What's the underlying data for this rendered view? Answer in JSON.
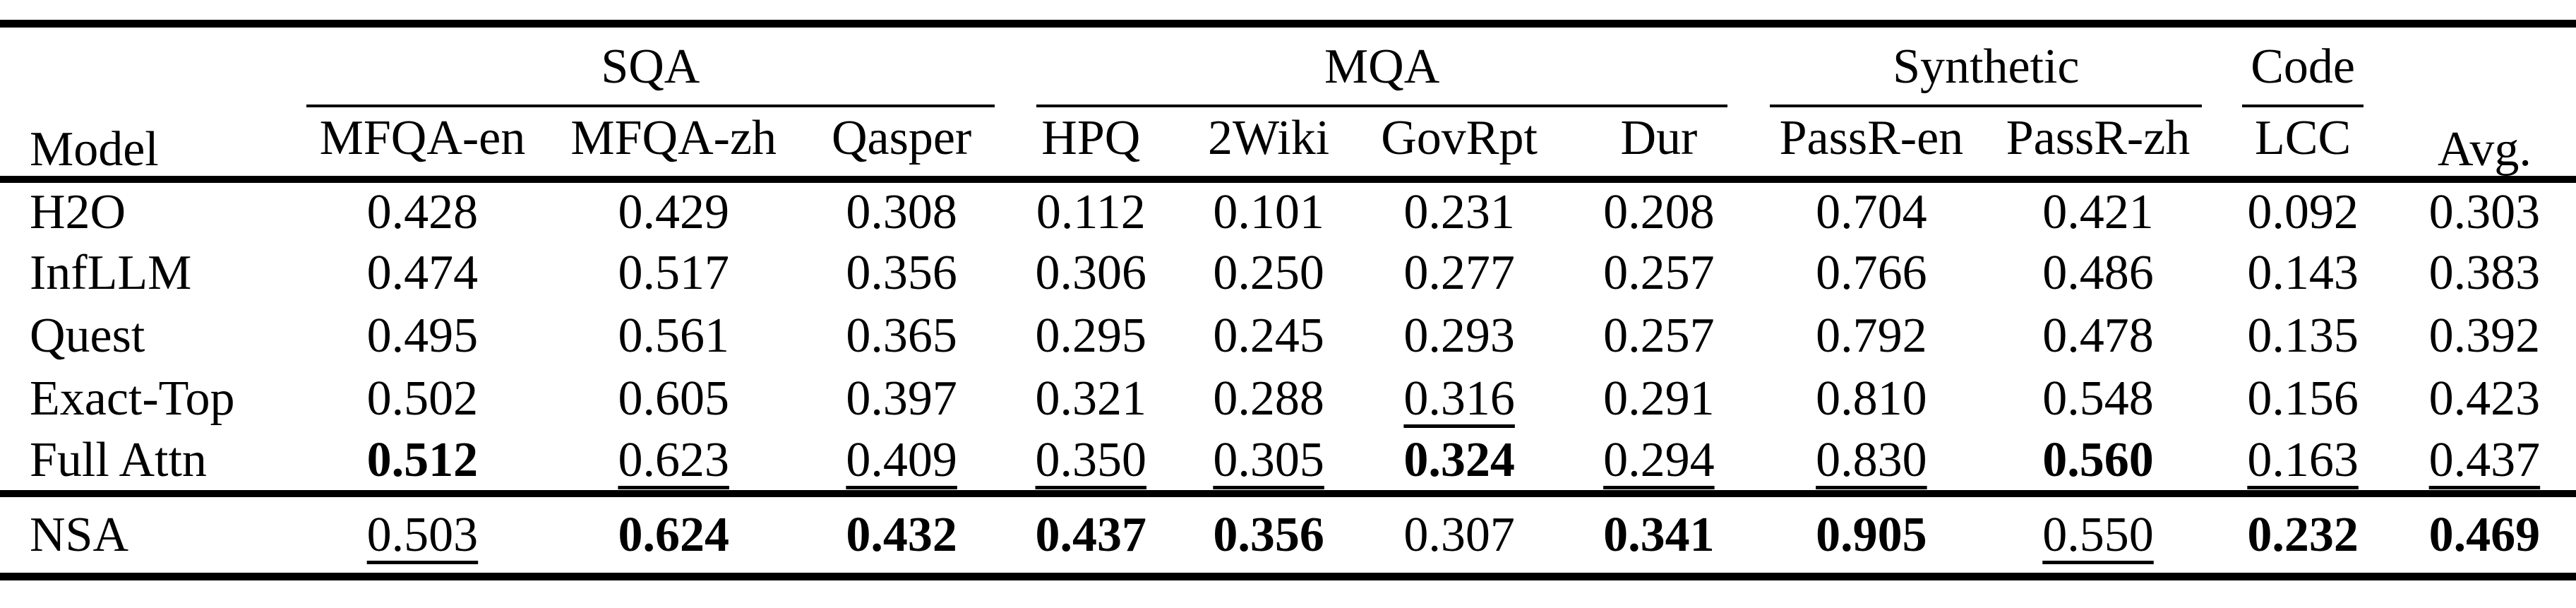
{
  "table": {
    "header": {
      "model_label": "Model",
      "avg_label": "Avg.",
      "groups": [
        {
          "label": "SQA",
          "cols": [
            "MFQA-en",
            "MFQA-zh",
            "Qasper"
          ]
        },
        {
          "label": "MQA",
          "cols": [
            "HPQ",
            "2Wiki",
            "GovRpt",
            "Dur"
          ]
        },
        {
          "label": "Synthetic",
          "cols": [
            "PassR-en",
            "PassR-zh"
          ]
        },
        {
          "label": "Code",
          "cols": [
            "LCC"
          ]
        }
      ]
    },
    "rows": [
      {
        "model": "H2O",
        "values": [
          "0.428",
          "0.429",
          "0.308",
          "0.112",
          "0.101",
          "0.231",
          "0.208",
          "0.704",
          "0.421",
          "0.092",
          "0.303"
        ],
        "emphasis": [
          "",
          "",
          "",
          "",
          "",
          "",
          "",
          "",
          "",
          "",
          ""
        ],
        "separator_before": false
      },
      {
        "model": "InfLLM",
        "values": [
          "0.474",
          "0.517",
          "0.356",
          "0.306",
          "0.250",
          "0.277",
          "0.257",
          "0.766",
          "0.486",
          "0.143",
          "0.383"
        ],
        "emphasis": [
          "",
          "",
          "",
          "",
          "",
          "",
          "",
          "",
          "",
          "",
          ""
        ],
        "separator_before": false
      },
      {
        "model": "Quest",
        "values": [
          "0.495",
          "0.561",
          "0.365",
          "0.295",
          "0.245",
          "0.293",
          "0.257",
          "0.792",
          "0.478",
          "0.135",
          "0.392"
        ],
        "emphasis": [
          "",
          "",
          "",
          "",
          "",
          "",
          "",
          "",
          "",
          "",
          ""
        ],
        "separator_before": false
      },
      {
        "model": "Exact-Top",
        "values": [
          "0.502",
          "0.605",
          "0.397",
          "0.321",
          "0.288",
          "0.316",
          "0.291",
          "0.810",
          "0.548",
          "0.156",
          "0.423"
        ],
        "emphasis": [
          "",
          "",
          "",
          "",
          "",
          "underline",
          "",
          "",
          "",
          "",
          ""
        ],
        "separator_before": false
      },
      {
        "model": "Full Attn",
        "values": [
          "0.512",
          "0.623",
          "0.409",
          "0.350",
          "0.305",
          "0.324",
          "0.294",
          "0.830",
          "0.560",
          "0.163",
          "0.437"
        ],
        "emphasis": [
          "bold",
          "underline",
          "underline",
          "underline",
          "underline",
          "bold",
          "underline",
          "underline",
          "bold",
          "underline",
          "underline"
        ],
        "separator_before": false
      },
      {
        "model": "NSA",
        "values": [
          "0.503",
          "0.624",
          "0.432",
          "0.437",
          "0.356",
          "0.307",
          "0.341",
          "0.905",
          "0.550",
          "0.232",
          "0.469"
        ],
        "emphasis": [
          "underline",
          "bold",
          "bold",
          "bold",
          "bold",
          "",
          "bold",
          "bold",
          "underline",
          "bold",
          "bold"
        ],
        "separator_before": true
      }
    ],
    "colors": {
      "text": "#000000",
      "background": "#ffffff"
    }
  }
}
